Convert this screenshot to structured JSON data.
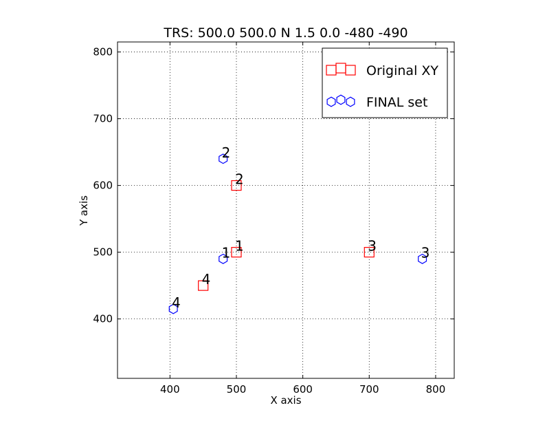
{
  "chart_data": {
    "type": "scatter",
    "title": "TRS: 500.0 500.0 N 1.5 0.0 -480 -490",
    "xlabel": "X axis",
    "ylabel": "Y axis",
    "xlim": [
      321,
      828
    ],
    "ylim": [
      311,
      815
    ],
    "xticks": [
      400,
      500,
      600,
      700,
      800
    ],
    "yticks": [
      400,
      500,
      600,
      700,
      800
    ],
    "grid": true,
    "legend_position": "top-right",
    "series": [
      {
        "name": "Original XY",
        "marker": "square",
        "color": "#ff0000",
        "points": [
          {
            "x": 500,
            "y": 500,
            "label": "1"
          },
          {
            "x": 500,
            "y": 600,
            "label": "2"
          },
          {
            "x": 700,
            "y": 500,
            "label": "3"
          },
          {
            "x": 450,
            "y": 450,
            "label": "4"
          }
        ]
      },
      {
        "name": "FINAL set",
        "marker": "hexagon",
        "color": "#0000ff",
        "points": [
          {
            "x": 480,
            "y": 490,
            "label": "1"
          },
          {
            "x": 480,
            "y": 640,
            "label": "2"
          },
          {
            "x": 780,
            "y": 490,
            "label": "3"
          },
          {
            "x": 405,
            "y": 415,
            "label": "4"
          }
        ]
      }
    ]
  }
}
